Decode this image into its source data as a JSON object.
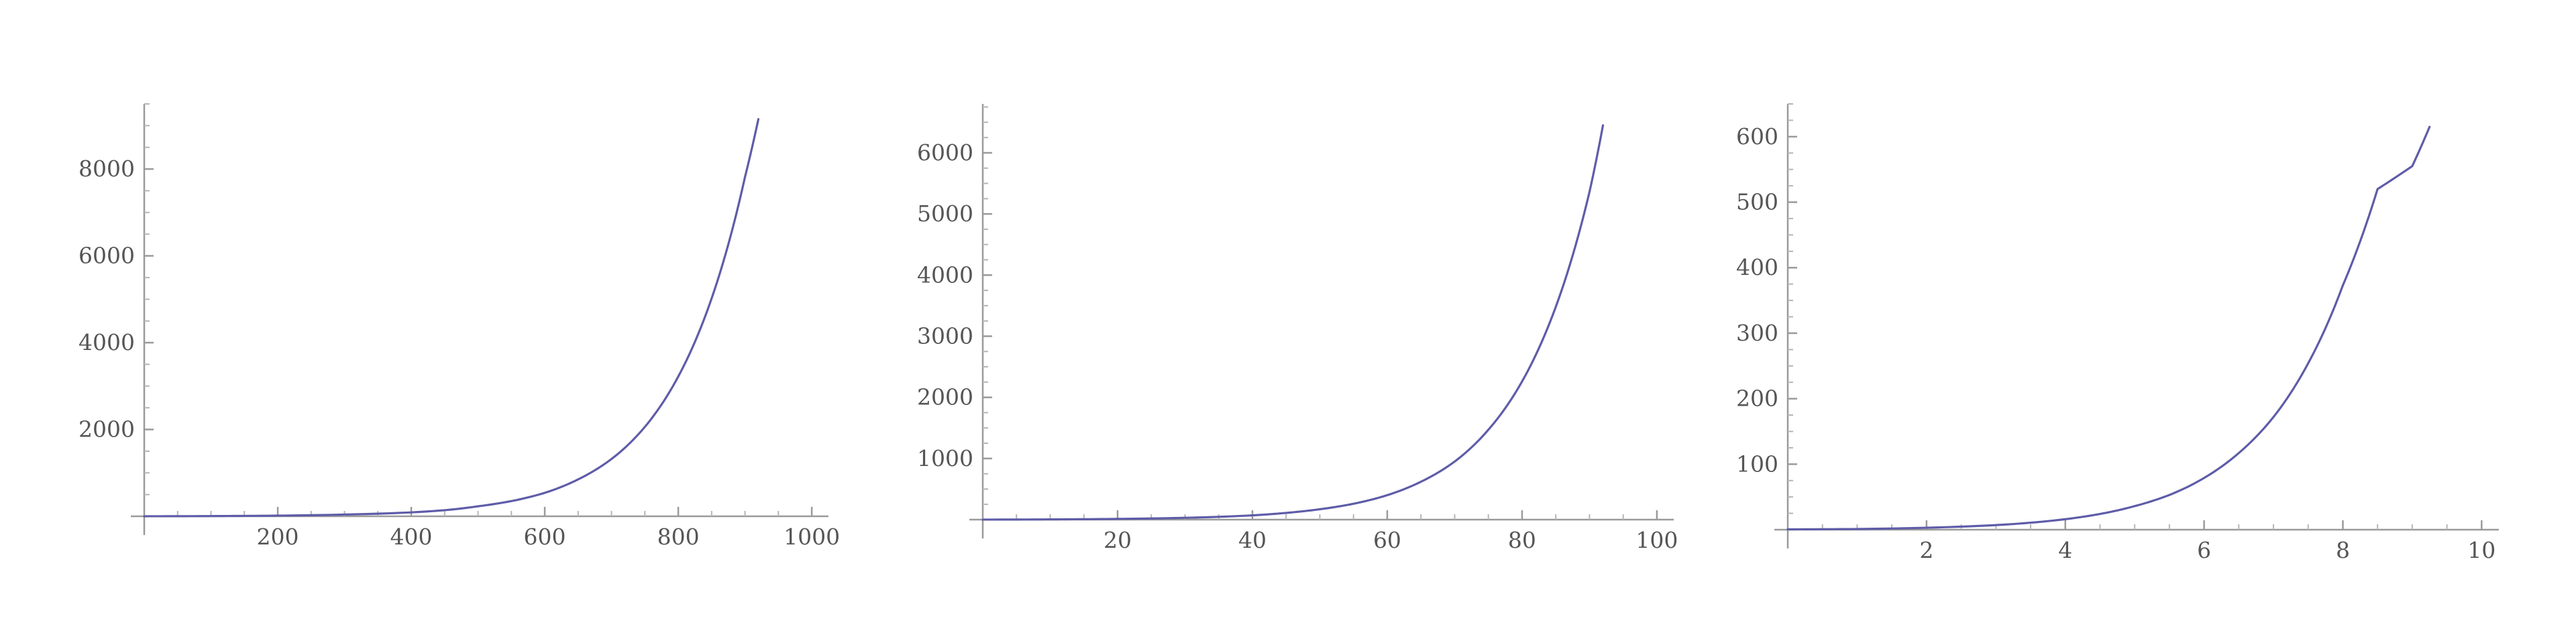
{
  "colors": {
    "curve": "#5e5ca8",
    "axis": "#9a9a9a",
    "tick_label": "#555555",
    "background": "#ffffff"
  },
  "chart_data": [
    {
      "type": "line",
      "title": "",
      "xlabel": "",
      "ylabel": "",
      "xlim": [
        0,
        1020
      ],
      "ylim": [
        -150,
        9500
      ],
      "grid": false,
      "x_ticks": [
        200,
        400,
        600,
        800,
        1000
      ],
      "x_tick_labels": [
        "200",
        "400",
        "600",
        "800",
        "1000"
      ],
      "y_ticks": [
        2000,
        4000,
        6000,
        8000
      ],
      "y_tick_labels": [
        "2000",
        "4000",
        "6000",
        "8000"
      ],
      "x_minor_step": 50,
      "y_minor_step": 500,
      "series": [
        {
          "x": [
            0,
            100,
            200,
            300,
            400,
            450,
            500,
            550,
            600,
            650,
            700,
            750,
            800,
            850,
            900,
            920
          ],
          "y": [
            0,
            5,
            15,
            40,
            90,
            140,
            230,
            350,
            540,
            850,
            1320,
            2060,
            3220,
            5020,
            7820,
            9150
          ]
        }
      ]
    },
    {
      "type": "line",
      "title": "",
      "xlabel": "",
      "ylabel": "",
      "xlim": [
        0,
        102
      ],
      "ylim": [
        -100,
        6800
      ],
      "grid": false,
      "x_ticks": [
        20,
        40,
        60,
        80,
        100
      ],
      "x_tick_labels": [
        "20",
        "40",
        "60",
        "80",
        "100"
      ],
      "y_ticks": [
        1000,
        2000,
        3000,
        4000,
        5000,
        6000
      ],
      "y_tick_labels": [
        "1000",
        "2000",
        "3000",
        "4000",
        "5000",
        "6000"
      ],
      "x_minor_step": 5,
      "y_minor_step": 250,
      "series": [
        {
          "x": [
            0,
            10,
            20,
            30,
            40,
            45,
            50,
            55,
            60,
            65,
            70,
            75,
            80,
            85,
            90,
            92
          ],
          "y": [
            0,
            4,
            12,
            30,
            70,
            110,
            170,
            260,
            400,
            620,
            950,
            1470,
            2260,
            3480,
            5360,
            6450
          ]
        }
      ]
    },
    {
      "type": "line",
      "title": "",
      "xlabel": "",
      "ylabel": "",
      "xlim": [
        0,
        10.2
      ],
      "ylim": [
        -10,
        650
      ],
      "grid": false,
      "x_ticks": [
        2,
        4,
        6,
        8,
        10
      ],
      "x_tick_labels": [
        "2",
        "4",
        "6",
        "8",
        "10"
      ],
      "y_ticks": [
        100,
        200,
        300,
        400,
        500,
        600
      ],
      "y_tick_labels": [
        "100",
        "200",
        "300",
        "400",
        "500",
        "600"
      ],
      "x_minor_step": 0.5,
      "y_minor_step": 25,
      "series": [
        {
          "x": [
            0,
            1,
            2,
            3,
            4,
            4.5,
            5,
            5.5,
            6,
            6.5,
            7,
            7.5,
            8,
            8.5,
            9,
            9.25
          ],
          "y": [
            0,
            1,
            3,
            7,
            16,
            24,
            36,
            53,
            79,
            117,
            172,
            254,
            373,
            520,
            555,
            615
          ]
        }
      ]
    }
  ]
}
